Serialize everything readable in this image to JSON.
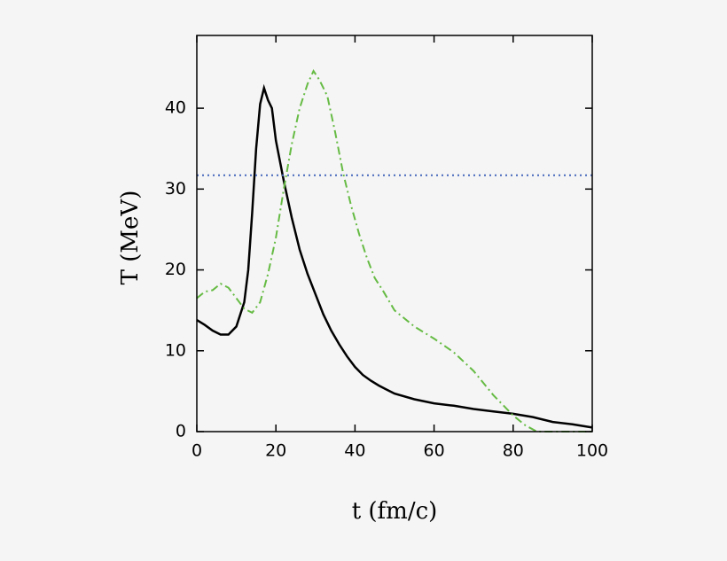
{
  "chart_data": {
    "type": "line",
    "xlabel": "t  (fm/c)",
    "ylabel": "T  (MeV)",
    "xlim": [
      0,
      100
    ],
    "ylim": [
      0,
      49
    ],
    "xticks": [
      0,
      20,
      40,
      60,
      80,
      100
    ],
    "yticks": [
      0,
      10,
      20,
      30,
      40
    ],
    "series": [
      {
        "color": "#000000",
        "dash": "solid",
        "x": [
          0,
          2,
          4,
          6,
          8,
          10,
          12,
          13,
          14,
          15,
          16,
          17,
          18,
          19,
          20,
          22,
          24,
          26,
          28,
          30,
          32,
          34,
          36,
          38,
          40,
          42,
          44,
          46,
          48,
          50,
          55,
          60,
          65,
          70,
          75,
          80,
          85,
          90,
          95,
          100
        ],
        "values": [
          13.8,
          13.2,
          12.5,
          12.0,
          12.0,
          13,
          16,
          20,
          27,
          35,
          40.5,
          42.5,
          41,
          40,
          36,
          31,
          26.5,
          22.5,
          19.5,
          17,
          14.5,
          12.5,
          10.8,
          9.3,
          8,
          7,
          6.3,
          5.7,
          5.2,
          4.7,
          4.0,
          3.5,
          3.2,
          2.8,
          2.5,
          2.2,
          1.8,
          1.2,
          0.9,
          0.5
        ]
      },
      {
        "color": "#66bb44",
        "dash": "dashdot",
        "x": [
          0,
          2,
          4,
          6,
          8,
          10,
          12,
          14,
          16,
          18,
          20,
          22,
          24,
          26,
          28,
          29.5,
          31,
          33,
          35,
          37,
          39,
          41,
          43,
          45,
          47,
          50,
          55,
          60,
          65,
          70,
          75,
          80,
          83,
          86,
          90,
          95,
          100
        ],
        "values": [
          16.5,
          17.3,
          17.5,
          18.3,
          17.8,
          16.5,
          15.2,
          14.7,
          16,
          19.5,
          24,
          30,
          35.5,
          40,
          43,
          44.6,
          43.5,
          41.5,
          37,
          32,
          28,
          24.5,
          21.5,
          19,
          17.5,
          15,
          13,
          11.5,
          9.8,
          7.5,
          4.5,
          2,
          0.8,
          0,
          0,
          0,
          0
        ]
      },
      {
        "color": "#4466bb",
        "dash": "dotted",
        "x": [
          0,
          100
        ],
        "values": [
          31.7,
          31.7
        ]
      }
    ]
  }
}
